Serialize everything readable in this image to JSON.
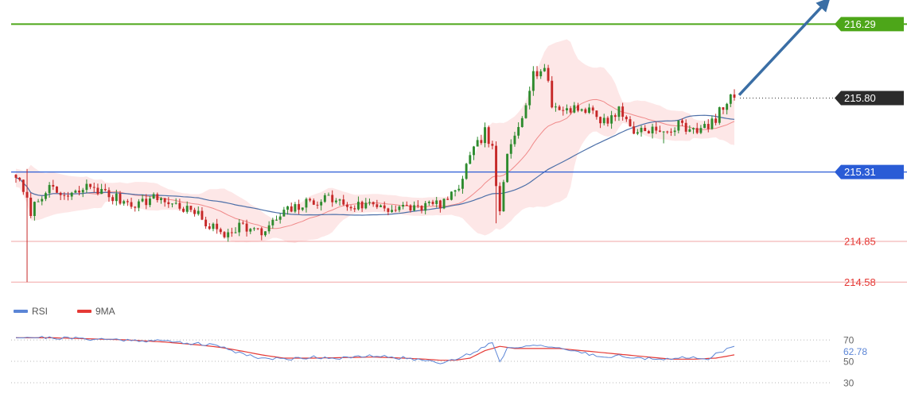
{
  "chart_data": [
    {
      "type": "candlestick",
      "title": "",
      "xlabel": "",
      "ylabel": "",
      "ylim": [
        214.45,
        216.45
      ],
      "grid": false,
      "levels": [
        {
          "value": 216.29,
          "label": "216.29",
          "color": "#4da619"
        },
        {
          "value": 215.8,
          "label": "215.80",
          "color": "#2b2b2b"
        },
        {
          "value": 215.31,
          "label": "215.31",
          "color": "#2a5cd6"
        },
        {
          "value": 214.85,
          "label": "214.85",
          "color": "#e53935"
        },
        {
          "value": 214.58,
          "label": "214.58",
          "color": "#e53935"
        }
      ],
      "anchors": [
        [
          0,
          215.29
        ],
        [
          4,
          215.05
        ],
        [
          8,
          215.2
        ],
        [
          14,
          215.14
        ],
        [
          20,
          215.22
        ],
        [
          26,
          215.14
        ],
        [
          32,
          215.1
        ],
        [
          38,
          215.14
        ],
        [
          44,
          215.08
        ],
        [
          48,
          215.04
        ],
        [
          52,
          214.95
        ],
        [
          56,
          214.9
        ],
        [
          60,
          214.96
        ],
        [
          66,
          214.9
        ],
        [
          72,
          215.04
        ],
        [
          78,
          215.1
        ],
        [
          84,
          215.14
        ],
        [
          90,
          215.08
        ],
        [
          96,
          215.1
        ],
        [
          102,
          215.06
        ],
        [
          108,
          215.08
        ],
        [
          114,
          215.1
        ],
        [
          118,
          215.16
        ],
        [
          122,
          215.4
        ],
        [
          126,
          215.58
        ],
        [
          128,
          215.45
        ],
        [
          130,
          215.02
        ],
        [
          132,
          215.42
        ],
        [
          136,
          215.7
        ],
        [
          139,
          215.96
        ],
        [
          142,
          216.0
        ],
        [
          144,
          215.76
        ],
        [
          146,
          215.72
        ],
        [
          150,
          215.74
        ],
        [
          154,
          215.72
        ],
        [
          158,
          215.64
        ],
        [
          162,
          215.72
        ],
        [
          166,
          215.58
        ],
        [
          170,
          215.6
        ],
        [
          174,
          215.56
        ],
        [
          178,
          215.62
        ],
        [
          182,
          215.6
        ],
        [
          186,
          215.6
        ],
        [
          190,
          215.74
        ],
        [
          193,
          215.82
        ]
      ],
      "candles": 194,
      "overlays": [
        "bollinger-bands",
        "moving-average-fast",
        "moving-average-slow"
      ],
      "projection": {
        "from_index": 193,
        "from_value": 215.82,
        "direction": "up"
      }
    },
    {
      "type": "line",
      "series": [
        {
          "name": "RSI",
          "color": "#5b85d6"
        },
        {
          "name": "9MA",
          "color": "#e53935"
        }
      ],
      "ylim": [
        27,
        76
      ],
      "ticks": [
        {
          "value": 70,
          "label": "70"
        },
        {
          "value": 50,
          "label": "50"
        },
        {
          "value": 30,
          "label": "30"
        }
      ],
      "current": {
        "label": "62.78",
        "color": "#5b85d6"
      },
      "rsi_anchors": [
        [
          0,
          73
        ],
        [
          10,
          72
        ],
        [
          20,
          71
        ],
        [
          30,
          70
        ],
        [
          40,
          69
        ],
        [
          50,
          66
        ],
        [
          55,
          64
        ],
        [
          60,
          58
        ],
        [
          66,
          53
        ],
        [
          72,
          52
        ],
        [
          80,
          54
        ],
        [
          88,
          53
        ],
        [
          96,
          55
        ],
        [
          104,
          53
        ],
        [
          110,
          51
        ],
        [
          114,
          49
        ],
        [
          118,
          52
        ],
        [
          122,
          57
        ],
        [
          126,
          64
        ],
        [
          128,
          68
        ],
        [
          130,
          50
        ],
        [
          132,
          62
        ],
        [
          136,
          64
        ],
        [
          140,
          66
        ],
        [
          144,
          62
        ],
        [
          150,
          60
        ],
        [
          156,
          55
        ],
        [
          162,
          55
        ],
        [
          168,
          53
        ],
        [
          174,
          51
        ],
        [
          180,
          54
        ],
        [
          186,
          53
        ],
        [
          190,
          60
        ],
        [
          193,
          63
        ]
      ],
      "ma_anchors": [
        [
          0,
          72
        ],
        [
          10,
          72
        ],
        [
          20,
          71
        ],
        [
          30,
          70
        ],
        [
          40,
          68
        ],
        [
          50,
          65
        ],
        [
          55,
          63
        ],
        [
          60,
          60
        ],
        [
          66,
          56
        ],
        [
          72,
          53
        ],
        [
          80,
          53
        ],
        [
          88,
          53.5
        ],
        [
          96,
          54
        ],
        [
          104,
          53
        ],
        [
          110,
          52
        ],
        [
          114,
          51
        ],
        [
          118,
          51
        ],
        [
          122,
          53
        ],
        [
          126,
          60
        ],
        [
          130,
          64
        ],
        [
          134,
          62
        ],
        [
          140,
          62
        ],
        [
          146,
          62
        ],
        [
          152,
          60
        ],
        [
          158,
          58
        ],
        [
          164,
          56
        ],
        [
          170,
          54
        ],
        [
          176,
          52
        ],
        [
          182,
          52
        ],
        [
          188,
          53
        ],
        [
          193,
          56
        ]
      ]
    }
  ]
}
